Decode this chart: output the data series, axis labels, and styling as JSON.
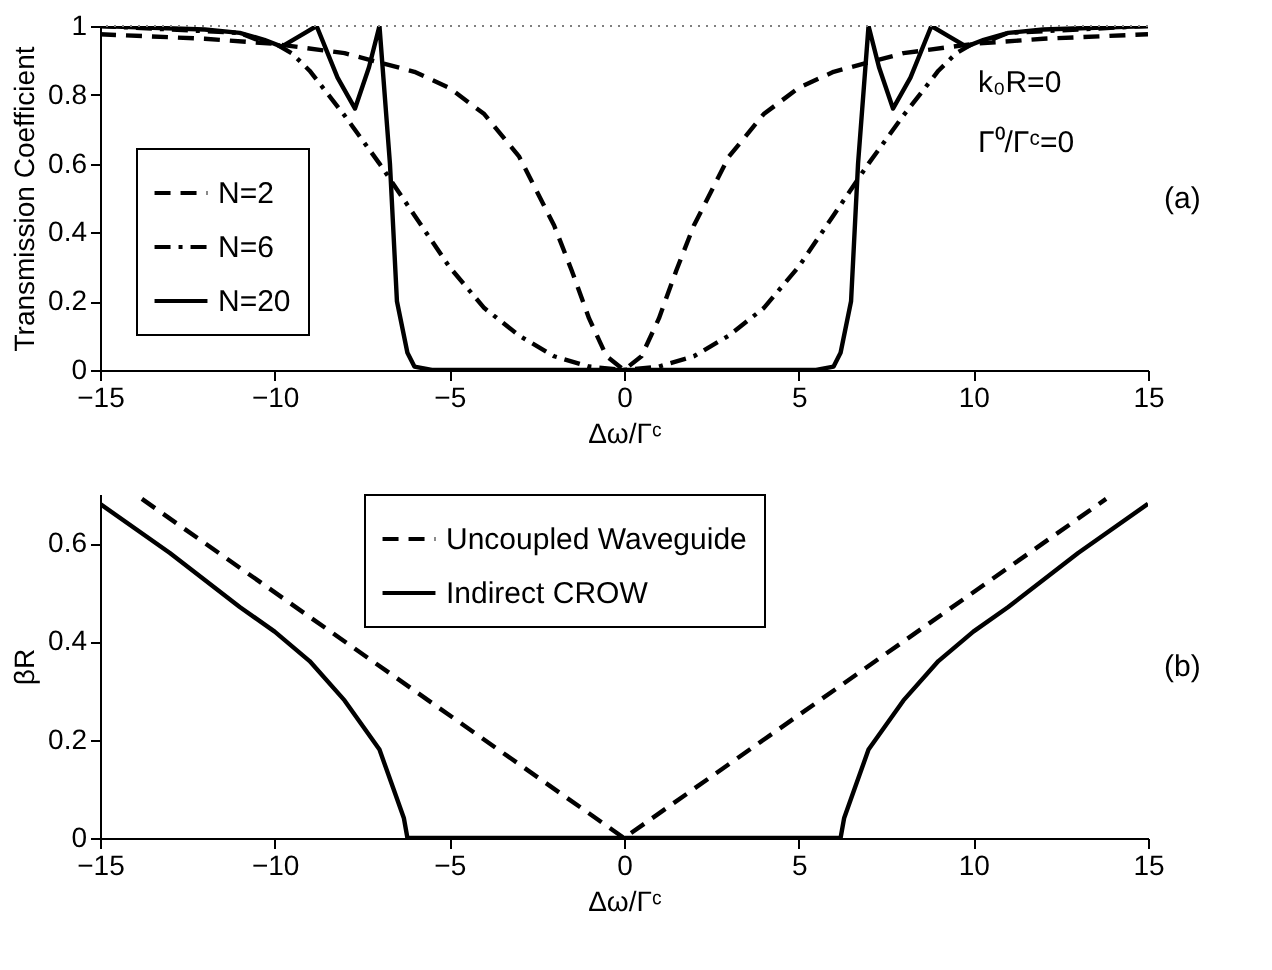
{
  "chart_data": [
    {
      "type": "line",
      "xlabel": "Δω/Γᶜ",
      "ylabel": "Transmission Coefficient",
      "xlim": [
        -15,
        15
      ],
      "xticks": [
        -15,
        -10,
        -5,
        0,
        5,
        10,
        15
      ],
      "ylim": [
        0,
        1
      ],
      "yticks": [
        0,
        0.2,
        0.4,
        0.6,
        0.8,
        1
      ],
      "legend": "bottom left",
      "annotations": [
        "k₀R=0",
        "Γ⁰/Γᶜ=0",
        "(a)"
      ],
      "ref_lines": [
        {
          "axis": "y",
          "value": 1,
          "color": "#808080",
          "line_style": "dotted"
        }
      ],
      "series": [
        {
          "name": "N=2",
          "color": "#000000",
          "line_style": "dashed",
          "x": [
            -15,
            -12,
            -10,
            -8,
            -6,
            -5,
            -4,
            -3,
            -2,
            -1.5,
            -1,
            -0.5,
            0,
            0.5,
            1,
            1.5,
            2,
            3,
            4,
            5,
            6,
            8,
            10,
            12,
            15
          ],
          "values": [
            0.976,
            0.963,
            0.948,
            0.921,
            0.867,
            0.82,
            0.744,
            0.62,
            0.42,
            0.29,
            0.15,
            0.04,
            0,
            0.04,
            0.15,
            0.29,
            0.42,
            0.62,
            0.744,
            0.82,
            0.867,
            0.921,
            0.948,
            0.963,
            0.976
          ]
        },
        {
          "name": "N=6",
          "color": "#000000",
          "line_style": "dashdot",
          "x": [
            -15,
            -13,
            -11,
            -10.5,
            -10,
            -9.5,
            -9,
            -8,
            -7,
            -6,
            -5,
            -4,
            -3,
            -2,
            -1,
            0,
            1,
            2,
            3,
            4,
            5,
            6,
            7,
            8,
            9,
            9.5,
            10,
            10.5,
            11,
            13,
            15
          ],
          "values": [
            1,
            0.99,
            0.98,
            0.96,
            0.95,
            0.92,
            0.87,
            0.74,
            0.6,
            0.45,
            0.3,
            0.18,
            0.1,
            0.04,
            0.01,
            0,
            0.01,
            0.04,
            0.1,
            0.18,
            0.3,
            0.45,
            0.6,
            0.74,
            0.87,
            0.92,
            0.95,
            0.96,
            0.98,
            0.99,
            1
          ]
        },
        {
          "name": "N=20",
          "color": "#000000",
          "line_style": "solid",
          "x": [
            -15,
            -12,
            -11,
            -10.3,
            -9.8,
            -9.3,
            -8.8,
            -8.2,
            -7.7,
            -7.3,
            -7,
            -6.7,
            -6.5,
            -6.2,
            -6,
            -5.5,
            -5,
            0,
            5,
            5.5,
            6,
            6.2,
            6.5,
            6.7,
            7,
            7.3,
            7.7,
            8.2,
            8.8,
            9.3,
            9.8,
            10.3,
            11,
            12,
            15
          ],
          "values": [
            1,
            0.99,
            0.98,
            0.96,
            0.94,
            0.97,
            1,
            0.85,
            0.76,
            0.88,
            1,
            0.6,
            0.2,
            0.05,
            0.01,
            0,
            0,
            0,
            0,
            0,
            0.01,
            0.05,
            0.2,
            0.6,
            1,
            0.88,
            0.76,
            0.85,
            1,
            0.97,
            0.94,
            0.96,
            0.98,
            0.99,
            1
          ]
        }
      ]
    },
    {
      "type": "line",
      "xlabel": "Δω/Γᶜ",
      "ylabel": "βR",
      "xlim": [
        -15,
        15
      ],
      "xticks": [
        -15,
        -10,
        -5,
        0,
        5,
        10,
        15
      ],
      "ylim": [
        0,
        0.7
      ],
      "yticks": [
        0,
        0.2,
        0.4,
        0.6
      ],
      "legend": "top",
      "annotations": [
        "(b)"
      ],
      "series": [
        {
          "name": "Uncoupled Waveguide",
          "color": "#000000",
          "line_style": "dashed",
          "x": [
            -13.8,
            0,
            13.8
          ],
          "values": [
            0.69,
            0,
            0.69
          ]
        },
        {
          "name": "Indirect CROW",
          "color": "#000000",
          "line_style": "solid",
          "x": [
            -15,
            -13,
            -11,
            -10,
            -9,
            -8,
            -7.5,
            -7,
            -6.6,
            -6.3,
            -6.2,
            0,
            6.2,
            6.3,
            6.6,
            7,
            7.5,
            8,
            9,
            10,
            11,
            13,
            15
          ],
          "values": [
            0.68,
            0.58,
            0.47,
            0.42,
            0.36,
            0.28,
            0.23,
            0.18,
            0.1,
            0.04,
            0,
            0,
            0,
            0.04,
            0.1,
            0.18,
            0.23,
            0.28,
            0.36,
            0.42,
            0.47,
            0.58,
            0.68
          ]
        }
      ]
    }
  ]
}
